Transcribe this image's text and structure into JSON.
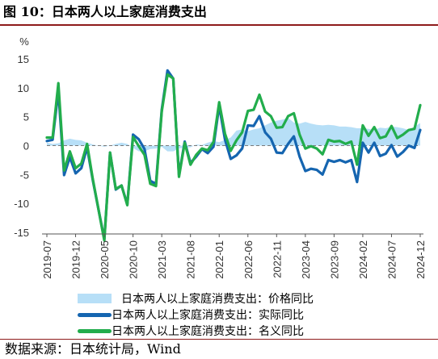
{
  "figure": {
    "title": "图 10：日本两人以上家庭消费支出",
    "source": "数据来源：日本统计局，Wind"
  },
  "colors": {
    "price": "#b7dff7",
    "real": "#1565b0",
    "nominal": "#22ad4c",
    "rule": "#8e1b1b"
  },
  "chart_data": {
    "type": "line",
    "unit_label": "%",
    "ylim": [
      -15,
      15
    ],
    "yticks": [
      15,
      10,
      5,
      0,
      -5,
      -10,
      -15
    ],
    "xticks": [
      "2019-07",
      "2019-12",
      "2020-05",
      "2020-10",
      "2021-03",
      "2021-08",
      "2022-01",
      "2022-06",
      "2022-11",
      "2023-04",
      "2023-09",
      "2024-02",
      "2024-07",
      "2024-12"
    ],
    "grid": false,
    "legend_position": "bottom",
    "x": [
      "2019-07",
      "2019-08",
      "2019-09",
      "2019-10",
      "2019-11",
      "2019-12",
      "2020-01",
      "2020-02",
      "2020-03",
      "2020-04",
      "2020-05",
      "2020-06",
      "2020-07",
      "2020-08",
      "2020-09",
      "2020-10",
      "2020-11",
      "2020-12",
      "2021-01",
      "2021-02",
      "2021-03",
      "2021-04",
      "2021-05",
      "2021-06",
      "2021-07",
      "2021-08",
      "2021-09",
      "2021-10",
      "2021-11",
      "2021-12",
      "2022-01",
      "2022-02",
      "2022-03",
      "2022-04",
      "2022-05",
      "2022-06",
      "2022-07",
      "2022-08",
      "2022-09",
      "2022-10",
      "2022-11",
      "2022-12",
      "2023-01",
      "2023-02",
      "2023-03",
      "2023-04",
      "2023-05",
      "2023-06",
      "2023-07",
      "2023-08",
      "2023-09",
      "2023-10",
      "2023-11",
      "2023-12",
      "2024-01",
      "2024-02",
      "2024-03",
      "2024-04",
      "2024-05",
      "2024-06",
      "2024-07",
      "2024-08",
      "2024-09",
      "2024-10",
      "2024-11",
      "2024-12"
    ],
    "series": [
      {
        "name": "日本两人以上家庭消费支出：价格同比",
        "kind": "area",
        "values": [
          0.5,
          0.3,
          0.4,
          0.9,
          1.2,
          1.0,
          0.9,
          0.5,
          0.2,
          0.0,
          -0.2,
          0.0,
          0.3,
          0.5,
          0.3,
          -0.4,
          -1.0,
          -1.0,
          -0.6,
          -0.5,
          -0.2,
          -1.0,
          -1.0,
          -0.5,
          -0.3,
          -0.3,
          0.2,
          0.1,
          0.5,
          0.8,
          0.6,
          1.0,
          1.4,
          2.6,
          2.8,
          2.5,
          2.8,
          3.0,
          3.5,
          4.0,
          4.3,
          4.5,
          4.8,
          4.0,
          3.8,
          4.1,
          3.8,
          3.6,
          3.5,
          3.6,
          3.5,
          3.3,
          3.3,
          3.2,
          3.0,
          3.0,
          2.9,
          2.7,
          3.1,
          3.0,
          3.3,
          3.2,
          3.0,
          2.7,
          3.3,
          3.9
        ]
      },
      {
        "name": "日本两人以上家庭消费支出：实际同比",
        "kind": "line",
        "values": [
          0.8,
          1.0,
          9.5,
          -5.1,
          -2.0,
          -4.8,
          -3.9,
          -0.3,
          -6.0,
          -11.1,
          -16.2,
          -1.2,
          -7.6,
          -6.9,
          -10.2,
          1.9,
          1.1,
          -0.6,
          -6.1,
          -6.6,
          6.2,
          13.0,
          11.6,
          -5.1,
          0.7,
          -3.0,
          -1.9,
          -0.6,
          -1.3,
          -0.2,
          6.9,
          1.1,
          -2.3,
          -1.7,
          -0.5,
          3.5,
          3.4,
          5.1,
          2.3,
          1.2,
          -1.2,
          -1.3,
          0.3,
          1.6,
          -1.9,
          -4.4,
          -4.0,
          -4.2,
          -5.0,
          -2.5,
          -2.8,
          -2.5,
          -2.9,
          -2.5,
          -6.3,
          0.5,
          -1.2,
          0.5,
          -1.8,
          -1.4,
          0.1,
          -1.9,
          -1.1,
          0.0,
          -0.4,
          2.7
        ]
      },
      {
        "name": "日本两人以上家庭消费支出：名义同比",
        "kind": "line",
        "values": [
          1.4,
          1.4,
          10.8,
          -4.3,
          -1.0,
          -3.9,
          -3.1,
          0.3,
          -5.8,
          -11.1,
          -16.4,
          -1.2,
          -7.5,
          -6.9,
          -10.3,
          1.5,
          -0.1,
          -1.6,
          -6.6,
          -7.0,
          5.9,
          12.3,
          11.6,
          -5.4,
          0.5,
          -3.3,
          -1.6,
          -0.5,
          -0.8,
          0.6,
          7.5,
          2.1,
          -0.9,
          0.9,
          2.3,
          6.0,
          6.2,
          8.8,
          5.9,
          5.1,
          3.1,
          3.2,
          5.1,
          5.6,
          1.9,
          -0.5,
          -0.1,
          -0.5,
          -1.5,
          1.0,
          0.7,
          0.8,
          0.3,
          0.7,
          -3.3,
          3.5,
          1.7,
          3.2,
          1.3,
          1.6,
          3.4,
          1.3,
          1.9,
          2.7,
          2.9,
          7.0
        ]
      }
    ]
  }
}
